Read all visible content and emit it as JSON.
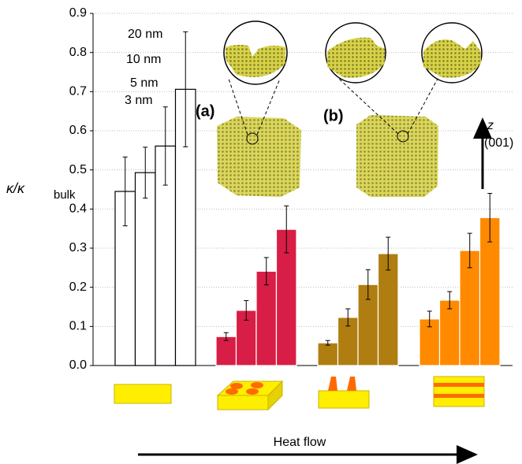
{
  "chart_data": {
    "type": "bar",
    "y_label": "κ/κ",
    "y_label_sub": "bulk",
    "categories": [
      "3 nm",
      "5 nm",
      "10 nm",
      "20 nm"
    ],
    "series": [
      {
        "color": "#ffffff",
        "edgecolor": "#000000",
        "values": [
          0.445,
          0.493,
          0.561,
          0.706
        ],
        "errors": [
          0.088,
          0.065,
          0.1,
          0.147
        ]
      },
      {
        "color": "#d81e46",
        "edgecolor": "#ffffff",
        "values": [
          0.074,
          0.141,
          0.241,
          0.348
        ],
        "errors": [
          0.01,
          0.025,
          0.035,
          0.06
        ]
      },
      {
        "color": "#b07d10",
        "edgecolor": "#ffffff",
        "values": [
          0.058,
          0.123,
          0.207,
          0.286
        ],
        "errors": [
          0.006,
          0.022,
          0.038,
          0.042
        ]
      },
      {
        "color": "#ff8a00",
        "edgecolor": "#ffffff",
        "values": [
          0.119,
          0.167,
          0.294,
          0.378
        ],
        "errors": [
          0.02,
          0.022,
          0.044,
          0.062
        ]
      }
    ],
    "ylim": [
      0,
      0.9
    ],
    "yticks": [
      {
        "value": 0,
        "label": "0.0"
      },
      0.1,
      0.2,
      0.3,
      0.4,
      0.5,
      0.6,
      0.7,
      0.8,
      0.9
    ],
    "grid": true,
    "annotations": {
      "a": "(a)",
      "b": "(b)",
      "z": "z",
      "direction": "(001)",
      "heat_flow": "Heat flow"
    }
  }
}
